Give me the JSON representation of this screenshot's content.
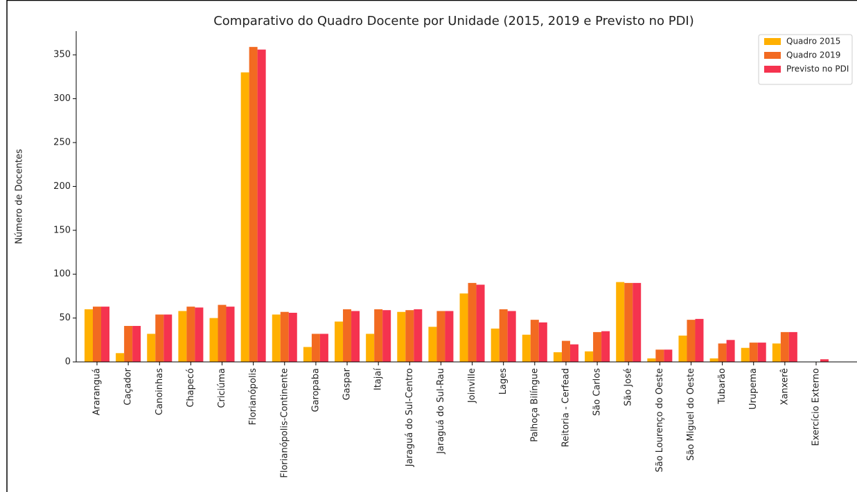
{
  "chart_data": {
    "type": "bar",
    "title": "Comparativo do Quadro Docente por Unidade (2015, 2019 e Previsto no PDI)",
    "y_label": "Número de Docentes",
    "categories": [
      "Araranguá",
      "Caçador",
      "Canoinhas",
      "Chapecó",
      "Criciúma",
      "Florianópolis",
      "Florianópolis-Continente",
      "Garopaba",
      "Gaspar",
      "Itajaí",
      "Jaraguá do Sul-Centro",
      "Jaraguá do Sul-Rau",
      "Joinville",
      "Lages",
      "Palhoça Bilíngue",
      "Reitoria - Cerfead",
      "São Carlos",
      "São José",
      "São Lourenço do Oeste",
      "São Miguel do Oeste",
      "Tubarão",
      "Urupema",
      "Xanxerê",
      "Exercício Externo"
    ],
    "series": [
      {
        "name": "Quadro 2015",
        "color": "#ffb000",
        "values": [
          60,
          10,
          32,
          58,
          50,
          330,
          54,
          17,
          46,
          32,
          57,
          40,
          78,
          38,
          31,
          11,
          12,
          91,
          4,
          30,
          4,
          16,
          21,
          0
        ]
      },
      {
        "name": "Quadro 2019",
        "color": "#f26a21",
        "values": [
          63,
          41,
          54,
          63,
          65,
          359,
          57,
          32,
          60,
          60,
          59,
          58,
          90,
          60,
          48,
          24,
          34,
          90,
          14,
          48,
          21,
          22,
          34,
          0
        ]
      },
      {
        "name": "Previsto no PDI",
        "color": "#f5334f",
        "values": [
          63,
          41,
          54,
          62,
          63,
          356,
          56,
          32,
          58,
          59,
          60,
          58,
          88,
          58,
          45,
          20,
          35,
          90,
          14,
          49,
          25,
          22,
          34,
          3
        ]
      }
    ],
    "ylim": [
      0,
      377
    ],
    "yticks": [
      0,
      50,
      100,
      150,
      200,
      250,
      300,
      350
    ],
    "legend": "upper right"
  }
}
